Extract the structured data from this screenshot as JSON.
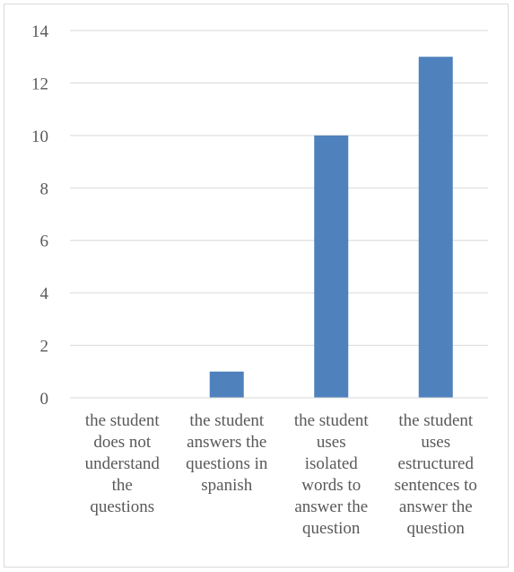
{
  "chart_data": {
    "type": "bar",
    "categories": [
      "the student\ndoes not\nunderstand\nthe\nquestions",
      "the student\nanswers the\nquestions in\nspanish",
      "the student\nuses\nisolated\nwords to\nanswer the\nquestion",
      "the student\nuses\nestructured\nsentences to\nanswer the\nquestion"
    ],
    "values": [
      0,
      1,
      10,
      13
    ],
    "ylim": [
      0,
      14
    ],
    "yticks": [
      0,
      2,
      4,
      6,
      8,
      10,
      12,
      14
    ],
    "grid": true,
    "bar_color": "#4f81bd",
    "title": "",
    "xlabel": "",
    "ylabel": ""
  }
}
